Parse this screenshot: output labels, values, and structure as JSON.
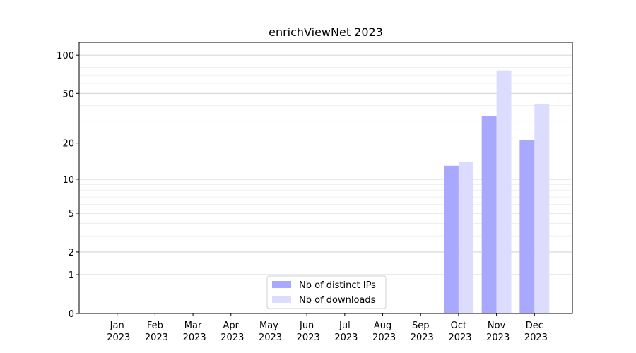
{
  "chart_data": {
    "type": "bar",
    "title": "enrichViewNet 2023",
    "categories": [
      "Jan 2023",
      "Feb 2023",
      "Mar 2023",
      "Apr 2023",
      "May 2023",
      "Jun 2023",
      "Jul 2023",
      "Aug 2023",
      "Sep 2023",
      "Oct 2023",
      "Nov 2023",
      "Dec 2023"
    ],
    "series": [
      {
        "name": "Nb of distinct IPs",
        "color": "#a8a8ff",
        "values": [
          0,
          0,
          0,
          0,
          0,
          0,
          0,
          0,
          0,
          13,
          33,
          21
        ]
      },
      {
        "name": "Nb of downloads",
        "color": "#dcdcff",
        "values": [
          0,
          0,
          0,
          0,
          0,
          0,
          0,
          0,
          0,
          14,
          76,
          41
        ]
      }
    ],
    "yscale": "log1p",
    "ylim": [
      0,
      126
    ],
    "yticks": [
      0,
      1,
      2,
      5,
      10,
      20,
      50,
      100
    ],
    "yminorticks": [
      3,
      4,
      6,
      7,
      8,
      9,
      30,
      40,
      60,
      70,
      80,
      90
    ],
    "grid": true,
    "legend": "lower center"
  }
}
